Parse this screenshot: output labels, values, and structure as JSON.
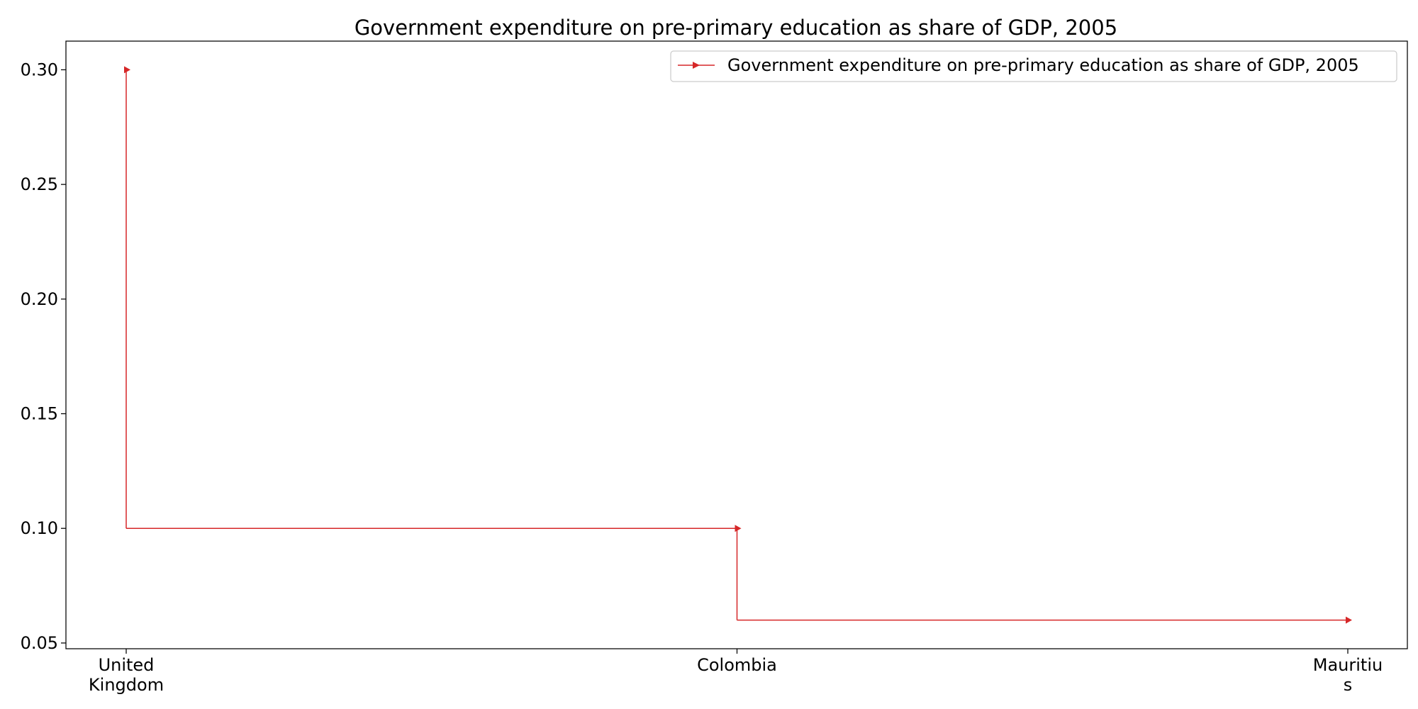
{
  "chart_data": {
    "type": "line",
    "step": "post",
    "title": "Government expenditure on pre-primary education as share of GDP, 2005",
    "xlabel": "",
    "ylabel": "",
    "categories": [
      "United Kingdom",
      "Colombia",
      "Mauritius"
    ],
    "category_tick_lines": [
      [
        "United",
        "Kingdom"
      ],
      [
        "Colombia"
      ],
      [
        "Mauritiu",
        "s"
      ]
    ],
    "series": [
      {
        "name": "Government expenditure on pre-primary education as share of GDP, 2005",
        "values": [
          0.3,
          0.1,
          0.06
        ],
        "color": "#d62728",
        "marker": "right-triangle"
      }
    ],
    "y_ticks": [
      "0.05",
      "0.10",
      "0.15",
      "0.20",
      "0.25",
      "0.30"
    ],
    "ylim": [
      0.0475,
      0.3125
    ],
    "grid": false,
    "legend_position": "top-right"
  }
}
